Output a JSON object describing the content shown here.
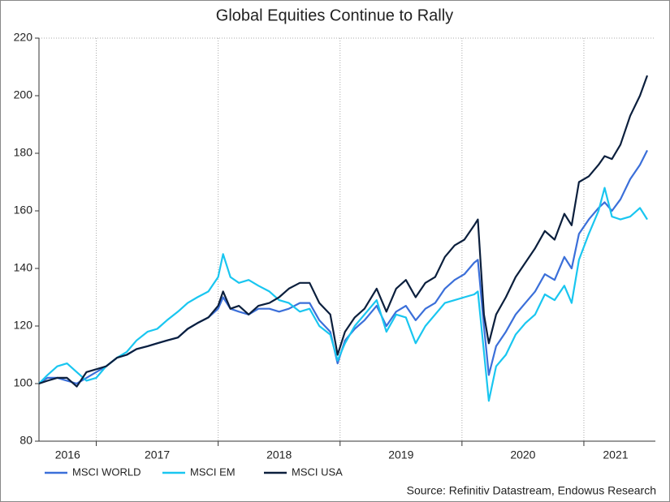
{
  "chart_data": {
    "type": "line",
    "title": "Global Equities Continue to Rally",
    "source": "Source: Refinitiv Datastream, Endowus Research",
    "x": [
      2016.53,
      2016.6,
      2016.68,
      2016.76,
      2016.84,
      2016.92,
      2017.0,
      2017.08,
      2017.17,
      2017.25,
      2017.33,
      2017.42,
      2017.5,
      2017.58,
      2017.67,
      2017.75,
      2017.83,
      2017.92,
      2018.0,
      2018.04,
      2018.1,
      2018.17,
      2018.25,
      2018.33,
      2018.42,
      2018.5,
      2018.58,
      2018.67,
      2018.75,
      2018.83,
      2018.92,
      2018.98,
      2019.04,
      2019.12,
      2019.2,
      2019.3,
      2019.38,
      2019.46,
      2019.54,
      2019.62,
      2019.7,
      2019.78,
      2019.86,
      2019.94,
      2020.02,
      2020.1,
      2020.13,
      2020.18,
      2020.22,
      2020.28,
      2020.36,
      2020.44,
      2020.52,
      2020.6,
      2020.68,
      2020.76,
      2020.84,
      2020.9,
      2020.96,
      2021.04,
      2021.12,
      2021.17,
      2021.23,
      2021.3,
      2021.38,
      2021.46,
      2021.52
    ],
    "series": [
      {
        "name": "MSCI WORLD",
        "color": "#3b6fd9",
        "values": [
          100,
          102,
          102,
          101,
          100,
          102,
          104,
          106,
          109,
          110,
          112,
          113,
          114,
          115,
          116,
          119,
          121,
          123,
          126,
          130,
          126,
          125,
          124,
          126,
          126,
          125,
          126,
          128,
          128,
          122,
          118,
          107,
          115,
          119,
          122,
          127,
          120,
          125,
          127,
          122,
          126,
          128,
          133,
          136,
          138,
          142,
          143,
          120,
          103,
          113,
          118,
          124,
          128,
          132,
          138,
          136,
          144,
          140,
          152,
          157,
          161,
          163,
          160,
          164,
          171,
          176,
          181
        ]
      },
      {
        "name": "MSCI EM",
        "color": "#19c6f0",
        "values": [
          100,
          103,
          106,
          107,
          104,
          101,
          102,
          106,
          109,
          111,
          115,
          118,
          119,
          122,
          125,
          128,
          130,
          132,
          137,
          145,
          137,
          135,
          136,
          134,
          132,
          129,
          128,
          125,
          126,
          120,
          117,
          108,
          114,
          120,
          124,
          129,
          118,
          124,
          123,
          114,
          120,
          124,
          128,
          129,
          130,
          131,
          132,
          111,
          94,
          106,
          110,
          117,
          121,
          124,
          131,
          129,
          134,
          128,
          143,
          152,
          160,
          168,
          158,
          157,
          158,
          161,
          157
        ]
      },
      {
        "name": "MSCI USA",
        "color": "#0b1f3d",
        "values": [
          100,
          101,
          102,
          102,
          99,
          104,
          105,
          106,
          109,
          110,
          112,
          113,
          114,
          115,
          116,
          119,
          121,
          123,
          127,
          132,
          126,
          127,
          124,
          127,
          128,
          130,
          133,
          135,
          135,
          128,
          124,
          110,
          118,
          123,
          126,
          133,
          125,
          133,
          136,
          130,
          135,
          137,
          144,
          148,
          150,
          155,
          157,
          124,
          114,
          124,
          130,
          137,
          142,
          147,
          153,
          150,
          159,
          155,
          170,
          172,
          176,
          179,
          178,
          183,
          193,
          200,
          207
        ]
      }
    ],
    "xlim": [
      2016.53,
      2021.52
    ],
    "xticks": [
      2016,
      2017,
      2018,
      2019,
      2020,
      2021
    ],
    "ylim": [
      80,
      220
    ],
    "yticks": [
      80,
      100,
      120,
      140,
      160,
      180,
      200,
      220
    ],
    "grid": true,
    "legend": "bottom-left"
  }
}
